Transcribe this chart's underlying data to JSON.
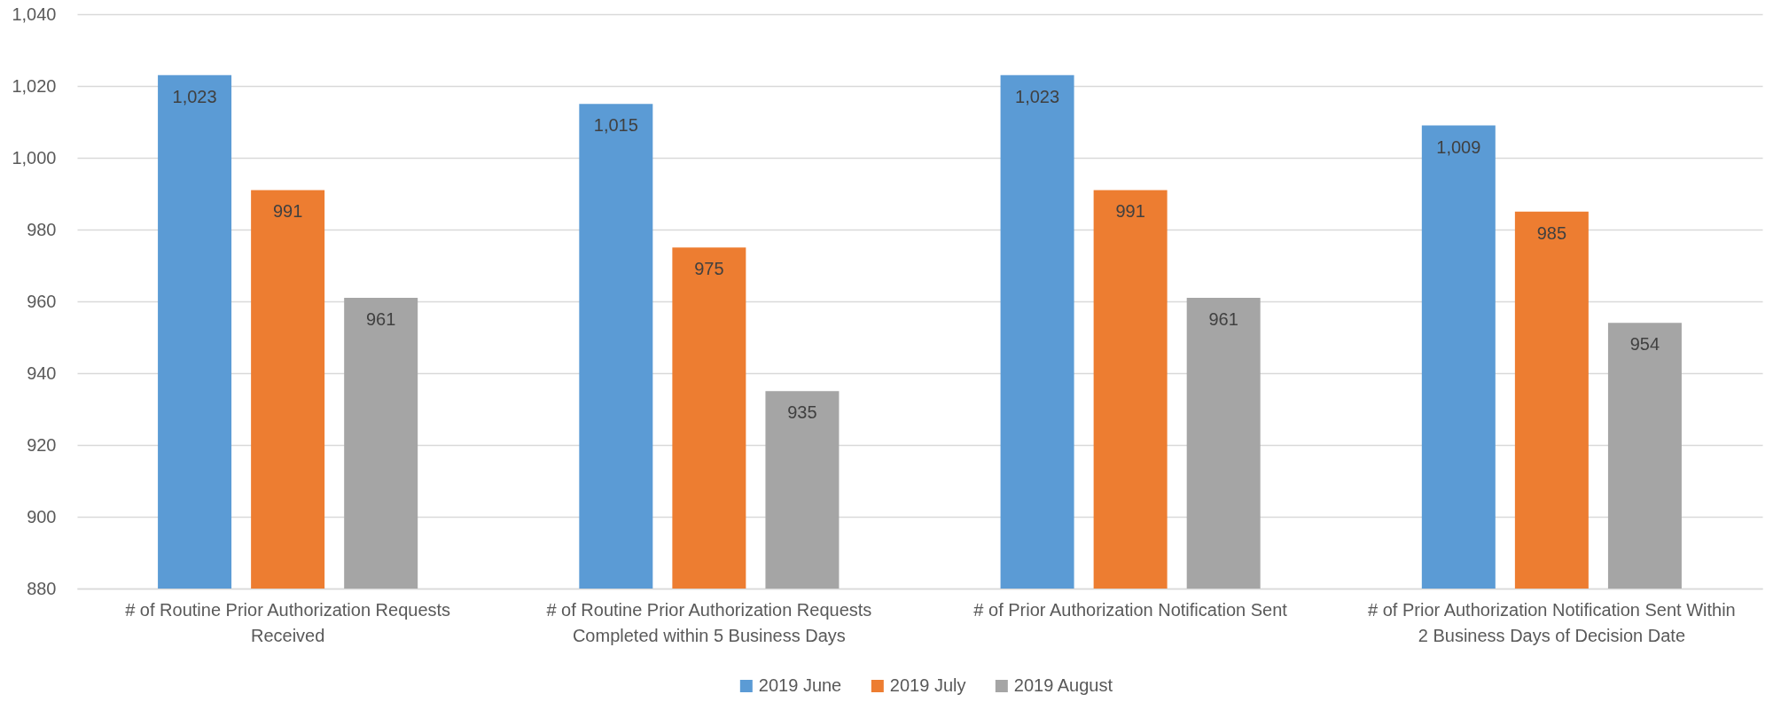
{
  "chart_data": {
    "type": "bar",
    "categories": [
      "# of Routine Prior Authorization Requests Received",
      "# of Routine Prior Authorization Requests Completed within 5 Business Days",
      "# of Prior Authorization Notification Sent",
      "# of Prior Authorization Notification Sent Within 2 Business Days of Decision Date"
    ],
    "series": [
      {
        "name": "2019 June",
        "color": "#5b9bd5",
        "values": [
          1023,
          1015,
          1023,
          1009
        ],
        "value_labels": [
          "1,023",
          "1,015",
          "1,023",
          "1,009"
        ]
      },
      {
        "name": "2019 July",
        "color": "#ed7d31",
        "values": [
          991,
          975,
          991,
          985
        ],
        "value_labels": [
          "991",
          "975",
          "991",
          "985"
        ]
      },
      {
        "name": "2019 August",
        "color": "#a5a5a5",
        "values": [
          961,
          935,
          961,
          954
        ],
        "value_labels": [
          "961",
          "935",
          "961",
          "954"
        ]
      }
    ],
    "ylim": [
      880,
      1040
    ],
    "yticks": [
      880,
      900,
      920,
      940,
      960,
      980,
      {
        "value": 1000,
        "label": "1,000"
      },
      {
        "value": 1020,
        "label": "1,020"
      },
      {
        "value": 1040,
        "label": "1,040"
      }
    ],
    "grid": "y",
    "legend": "bottom"
  }
}
